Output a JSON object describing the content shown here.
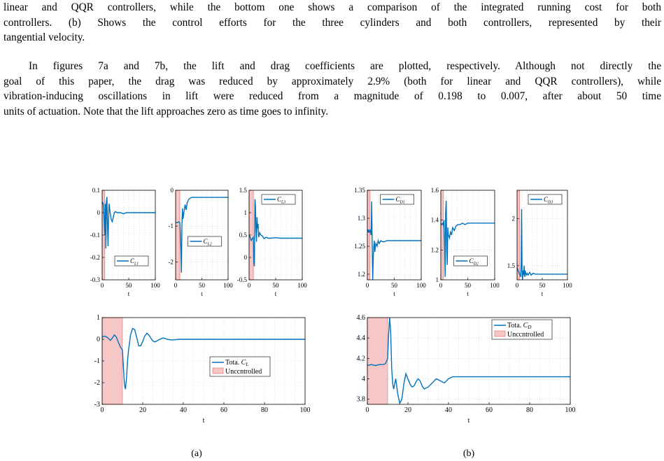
{
  "text": {
    "para1_lines": [
      "linear and QQR controllers, while the bottom one shows a comparison of the integrated running cost for both",
      "controllers.  (b) Shows the control efforts for the three cylinders and both controllers, represented by their",
      "tangential velocity."
    ],
    "para2_lines": [
      "In figures 7a and 7b, the lift and drag coefficients are plotted, respectively.  Although not directly the",
      "goal of this paper, the drag was reduced by approximately 2.9% (both for linear and QQR controllers), while",
      "vibration-inducing oscillations in lift were reduced from a magnitude of 0.198 to 0.007, after about 50 time",
      "units of actuation. Note that the lift approaches zero as time goes to infinity."
    ]
  },
  "captions": {
    "a": "(a)",
    "b": "(b)"
  },
  "colors": {
    "line": "#0072BD",
    "uncontrolled_fill": "#F7C6C6",
    "uncontrolled_edge": "#E06060",
    "grid": "#d0d0d0"
  },
  "chart_data": [
    {
      "type": "line",
      "id": "CL1",
      "legend": "C_{L_1}",
      "legend_loc": "bottom-center",
      "xlim": [
        0,
        100
      ],
      "ylim": [
        -0.3,
        0.1
      ],
      "xticks": [
        "0",
        "50",
        "100"
      ],
      "yticks": [
        "0.1",
        "0",
        "-0.1",
        "-0.2",
        "-0.3"
      ],
      "ytick_values": [
        0.1,
        0,
        -0.1,
        -0.2,
        -0.3
      ],
      "xlabel": "t",
      "uncontrolled": [
        0,
        5
      ],
      "series": [
        {
          "x": [
            0,
            1,
            2,
            3,
            4,
            5,
            6,
            7,
            8,
            9,
            10,
            11,
            12,
            13,
            15,
            17,
            19,
            21,
            23,
            25,
            28,
            31,
            35,
            40,
            45,
            50,
            60,
            70,
            80,
            90,
            100
          ],
          "y": [
            0.04,
            0.045,
            0.04,
            0.02,
            -0.05,
            -0.1,
            0.04,
            -0.16,
            0.05,
            0.07,
            -0.05,
            -0.15,
            -0.04,
            0.04,
            0.0,
            -0.03,
            -0.04,
            -0.02,
            0.0,
            0.005,
            0.0,
            0.0,
            0.0,
            -0.005,
            0.0,
            0.0,
            0.0,
            0.0,
            0.0,
            0.0,
            0.0
          ]
        }
      ]
    },
    {
      "type": "line",
      "id": "CL2",
      "legend": "C_{L_2}",
      "legend_loc": "center",
      "xlim": [
        0,
        100
      ],
      "ylim": [
        -2.5,
        0
      ],
      "xticks": [
        "0",
        "50",
        "100"
      ],
      "yticks": [
        "0",
        "-1",
        "-2"
      ],
      "ytick_values": [
        0,
        -1,
        -2
      ],
      "xlabel": "t",
      "uncontrolled": [
        0,
        8
      ],
      "series": [
        {
          "x": [
            0,
            2,
            4,
            6,
            8,
            9,
            10,
            11,
            12,
            13,
            14,
            16,
            18,
            20,
            22,
            25,
            30,
            35,
            40,
            50,
            60,
            70,
            80,
            90,
            100
          ],
          "y": [
            -0.9,
            -0.9,
            -0.9,
            -0.88,
            -0.9,
            -1.2,
            -1.6,
            -2.3,
            -1.0,
            -0.5,
            -0.8,
            -0.6,
            -0.4,
            -0.55,
            -0.35,
            -0.25,
            -0.2,
            -0.2,
            -0.2,
            -0.2,
            -0.2,
            -0.2,
            -0.2,
            -0.2,
            -0.2
          ]
        }
      ]
    },
    {
      "type": "line",
      "id": "CL3",
      "legend": "C_{L_3}",
      "legend_loc": "top-center",
      "xlim": [
        0,
        100
      ],
      "ylim": [
        -0.5,
        1.5
      ],
      "xticks": [
        "0",
        "50",
        "100"
      ],
      "yticks": [
        "1.5",
        "1",
        "0.5",
        "0",
        "-0.5"
      ],
      "ytick_values": [
        1.5,
        1,
        0.5,
        0,
        -0.5
      ],
      "xlabel": "t",
      "uncontrolled": [
        0,
        8
      ],
      "series": [
        {
          "x": [
            0,
            2,
            4,
            6,
            8,
            9,
            10,
            11,
            12,
            13,
            14,
            15,
            16,
            17,
            18,
            20,
            22,
            25,
            28,
            32,
            36,
            40,
            50,
            60,
            70,
            80,
            90,
            100
          ],
          "y": [
            0.5,
            0.45,
            0.38,
            0.42,
            0.45,
            -0.1,
            -0.2,
            1.3,
            1.15,
            0.6,
            0.35,
            0.9,
            0.65,
            0.75,
            0.45,
            0.55,
            0.5,
            0.48,
            0.42,
            0.45,
            0.43,
            0.43,
            0.44,
            0.43,
            0.43,
            0.43,
            0.43,
            0.43
          ]
        }
      ]
    },
    {
      "type": "line",
      "id": "CD1",
      "legend": "C_{D_1}",
      "legend_loc": "top-center",
      "xlim": [
        0,
        100
      ],
      "ylim": [
        1.19,
        1.35
      ],
      "xticks": [
        "0",
        "50",
        "100"
      ],
      "yticks": [
        "1.35",
        "1.3",
        "1.25",
        "1.2"
      ],
      "ytick_values": [
        1.35,
        1.3,
        1.25,
        1.2
      ],
      "xlabel": "t",
      "uncontrolled": [
        0,
        5
      ],
      "series": [
        {
          "x": [
            0,
            1,
            2,
            3,
            4,
            5,
            6,
            7,
            8,
            9,
            10,
            11,
            12,
            13,
            14,
            15,
            16,
            18,
            20,
            22,
            25,
            28,
            32,
            36,
            40,
            50,
            60,
            70,
            80,
            90,
            100
          ],
          "y": [
            1.28,
            1.275,
            1.28,
            1.275,
            1.275,
            1.28,
            1.275,
            1.27,
            1.33,
            1.25,
            1.19,
            1.23,
            1.25,
            1.26,
            1.24,
            1.25,
            1.255,
            1.25,
            1.26,
            1.255,
            1.26,
            1.258,
            1.258,
            1.26,
            1.26,
            1.26,
            1.26,
            1.26,
            1.26,
            1.26,
            1.26
          ]
        }
      ]
    },
    {
      "type": "line",
      "id": "CD2",
      "legend": "C_{D_2}",
      "legend_loc": "bottom-center",
      "xlim": [
        0,
        100
      ],
      "ylim": [
        1.0,
        1.6
      ],
      "xticks": [
        "0",
        "50",
        "100"
      ],
      "yticks": [
        "1.6",
        "1.4",
        "1.2",
        "1"
      ],
      "ytick_values": [
        1.6,
        1.4,
        1.2,
        1.0
      ],
      "xlabel": "t",
      "uncontrolled": [
        0,
        5
      ],
      "series": [
        {
          "x": [
            0,
            2,
            4,
            5,
            6,
            7,
            8,
            9,
            10,
            11,
            12,
            13,
            14,
            16,
            18,
            20,
            22,
            25,
            28,
            32,
            36,
            40,
            45,
            50,
            60,
            70,
            80,
            90,
            100
          ],
          "y": [
            1.38,
            1.37,
            1.38,
            1.36,
            1.4,
            1.25,
            1.02,
            1.45,
            1.53,
            1.2,
            1.1,
            1.35,
            1.3,
            1.28,
            1.32,
            1.3,
            1.35,
            1.33,
            1.36,
            1.37,
            1.37,
            1.38,
            1.37,
            1.38,
            1.38,
            1.38,
            1.38,
            1.38,
            1.38
          ]
        }
      ]
    },
    {
      "type": "line",
      "id": "CD3",
      "legend": "C_{D_3}",
      "legend_loc": "top-center",
      "xlim": [
        0,
        100
      ],
      "ylim": [
        1.35,
        2.3
      ],
      "xticks": [
        "0",
        "50",
        "100"
      ],
      "yticks": [
        "2",
        "1.5"
      ],
      "ytick_values": [
        2,
        1.5
      ],
      "xlabel": "t",
      "uncontrolled": [
        0,
        5
      ],
      "series": [
        {
          "x": [
            0,
            2,
            4,
            6,
            7,
            8,
            9,
            10,
            11,
            12,
            13,
            14,
            15,
            16,
            18,
            20,
            22,
            25,
            28,
            32,
            36,
            40,
            50,
            60,
            70,
            80,
            90,
            100
          ],
          "y": [
            1.48,
            1.45,
            1.42,
            1.4,
            1.38,
            1.5,
            2.1,
            1.4,
            1.35,
            1.45,
            1.4,
            1.5,
            1.38,
            1.45,
            1.4,
            1.42,
            1.4,
            1.43,
            1.4,
            1.42,
            1.41,
            1.41,
            1.41,
            1.41,
            1.41,
            1.41,
            1.41,
            1.41
          ]
        }
      ]
    },
    {
      "type": "line",
      "id": "CL_total",
      "legend_loc": "bottom-right",
      "legend_entries": [
        "Tota. C_L",
        "Unccntrolled"
      ],
      "xlim": [
        0,
        100
      ],
      "ylim": [
        -3,
        1
      ],
      "xticks": [
        "0",
        "20",
        "40",
        "60",
        "80",
        "100"
      ],
      "xtick_values": [
        0,
        20,
        40,
        60,
        80,
        100
      ],
      "yticks": [
        "1",
        "0",
        "-1",
        "-2",
        "-3"
      ],
      "ytick_values": [
        1,
        0,
        -1,
        -2,
        -3
      ],
      "xlabel": "t",
      "uncontrolled": [
        0,
        10
      ],
      "series": [
        {
          "x": [
            0,
            1,
            2,
            3,
            4,
            5,
            6,
            7,
            8,
            9,
            10,
            10.5,
            11,
            11.5,
            12,
            12.5,
            13,
            14,
            15,
            16,
            17,
            18,
            19,
            20,
            21,
            22,
            23,
            24,
            25,
            26,
            27,
            28,
            29,
            30,
            31,
            32,
            34,
            36,
            38,
            40,
            45,
            50,
            60,
            70,
            80,
            90,
            100
          ],
          "y": [
            0.1,
            0.15,
            0.12,
            0.05,
            -0.05,
            0.05,
            0.2,
            0.1,
            -0.15,
            -0.35,
            -0.5,
            -1.3,
            -2.1,
            -2.3,
            -1.8,
            -1.0,
            -0.5,
            0.2,
            0.5,
            0.45,
            0.1,
            -0.3,
            -0.3,
            -0.1,
            0.15,
            0.28,
            0.2,
            0.05,
            -0.08,
            -0.12,
            -0.08,
            -0.02,
            0.03,
            0.06,
            0.04,
            0.0,
            -0.03,
            -0.02,
            0.0,
            0.0,
            0.0,
            0.0,
            0.0,
            0.0,
            0.0,
            0.0,
            0.0
          ]
        }
      ]
    },
    {
      "type": "line",
      "id": "CD_total",
      "legend_loc": "top-right",
      "legend_entries": [
        "Tota. C_D",
        "Unccntrolled"
      ],
      "xlim": [
        0,
        100
      ],
      "ylim": [
        3.75,
        4.6
      ],
      "xticks": [
        "0",
        "20",
        "40",
        "60",
        "80",
        "100"
      ],
      "xtick_values": [
        0,
        20,
        40,
        60,
        80,
        100
      ],
      "yticks": [
        "4.6",
        "4.4",
        "4.2",
        "4",
        "3.8"
      ],
      "ytick_values": [
        4.6,
        4.4,
        4.2,
        4.0,
        3.8
      ],
      "xlabel": "t",
      "uncontrolled": [
        0,
        10
      ],
      "series": [
        {
          "x": [
            0,
            2,
            4,
            6,
            8,
            9,
            10,
            10.5,
            11,
            11.5,
            12,
            12.5,
            13,
            14,
            15,
            16,
            17,
            18,
            19,
            20,
            21,
            22,
            23,
            24,
            25,
            26,
            27,
            28,
            30,
            32,
            34,
            36,
            38,
            40,
            42,
            45,
            48,
            50,
            55,
            60,
            70,
            80,
            90,
            100
          ],
          "y": [
            4.13,
            4.14,
            4.13,
            4.14,
            4.14,
            4.15,
            4.2,
            4.45,
            4.62,
            4.45,
            4.1,
            3.95,
            3.9,
            4.0,
            3.85,
            3.76,
            3.8,
            3.95,
            4.05,
            4.0,
            3.95,
            3.92,
            3.93,
            3.97,
            4.0,
            3.98,
            3.93,
            3.9,
            3.92,
            3.96,
            4.0,
            3.98,
            3.96,
            4.0,
            4.02,
            4.02,
            4.02,
            4.02,
            4.02,
            4.02,
            4.02,
            4.02,
            4.02,
            4.02
          ]
        }
      ]
    }
  ]
}
